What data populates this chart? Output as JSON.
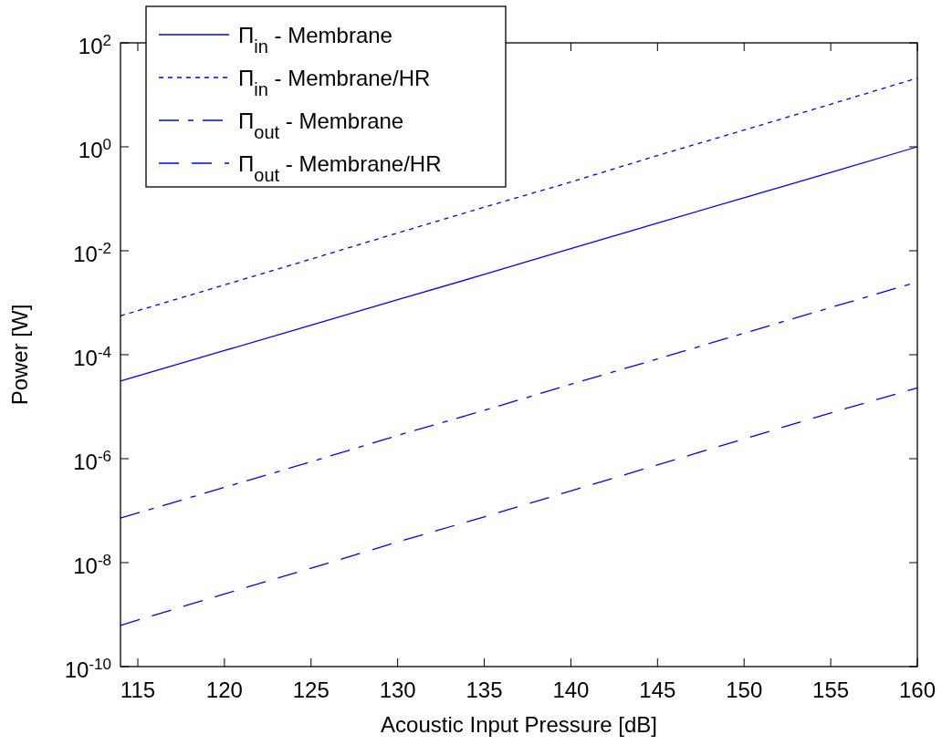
{
  "chart_data": {
    "type": "line",
    "xlabel": "Acoustic Input Pressure [dB]",
    "ylabel": "Power [W]",
    "log": "y",
    "xlim": [
      114,
      160
    ],
    "xticks": [
      115,
      120,
      125,
      130,
      135,
      140,
      145,
      150,
      155,
      160
    ],
    "ylim": [
      1e-10,
      100
    ],
    "yticks": [
      {
        "value": 1e-10,
        "label": "10$^{-10}$"
      },
      {
        "value": 1e-08,
        "label": "10$^{-8}$"
      },
      {
        "value": 1e-06,
        "label": "10$^{-6}$"
      },
      {
        "value": 0.0001,
        "label": "10$^{-4}$"
      },
      {
        "value": 0.01,
        "label": "10$^{-2}$"
      },
      {
        "value": 1,
        "label": "10$^{0}$"
      },
      {
        "value": 100,
        "label": "10$^{2}$"
      }
    ],
    "x": [
      114,
      120,
      125,
      130,
      135,
      140,
      145,
      150,
      155,
      160
    ],
    "legend": "top left",
    "grid": false,
    "series": [
      {
        "name": "Π$_{in}$ - Membrane",
        "color": "#0000ff",
        "line_style": "solid",
        "values": [
          3.1e-05,
          0.00012,
          0.00037,
          0.00115,
          0.0035,
          0.011,
          0.034,
          0.105,
          0.32,
          1.0
        ]
      },
      {
        "name": "Π$_{in}$ - Membrane/HR",
        "color": "#0000ff",
        "line_style": "dotted",
        "values": [
          0.00056,
          0.0022,
          0.0069,
          0.022,
          0.069,
          0.21,
          0.68,
          2.1,
          6.6,
          21
        ]
      },
      {
        "name": "Π$_{out}$ - Membrane",
        "color": "#0000ff",
        "line_style": "dashdot",
        "values": [
          7.2e-08,
          2.8e-07,
          8.7e-07,
          2.8e-06,
          8.5e-06,
          2.7e-05,
          8.3e-05,
          0.00026,
          0.00081,
          0.0025
        ]
      },
      {
        "name": "Π$_{out}$ - Membrane/HR",
        "color": "#0000ff",
        "line_style": "dashed",
        "values": [
          6.2e-10,
          2.5e-09,
          7.8e-09,
          2.5e-08,
          7.6e-08,
          2.4e-07,
          7.6e-07,
          2.4e-06,
          7.6e-06,
          2.3e-05
        ]
      }
    ]
  }
}
